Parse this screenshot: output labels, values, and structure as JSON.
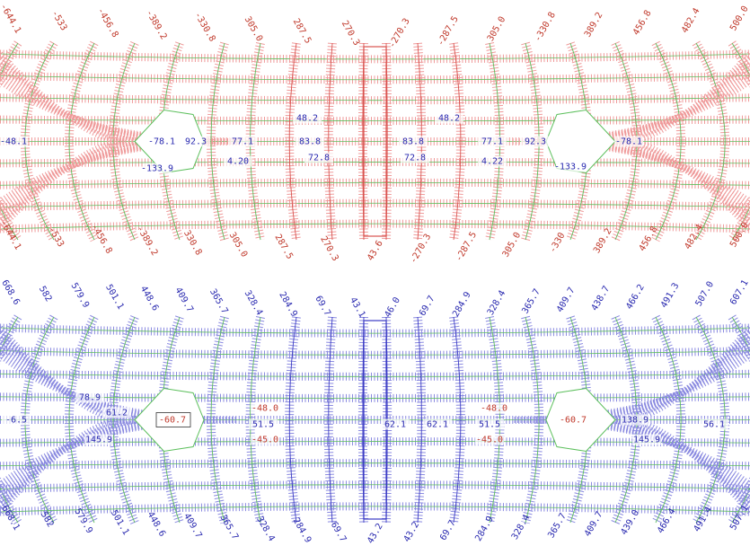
{
  "top_panel": {
    "edge_labels_top": [
      "-644.1",
      "-533",
      "-456.8",
      "-389.2",
      "-330.8",
      "305.0",
      "287.5",
      "270.3",
      "-270.3",
      "-287.5",
      "305.0",
      "-330.8",
      "389.2",
      "456.8",
      "482.4",
      "500.0"
    ],
    "edge_labels_bottom": [
      "-644.1",
      "-533",
      "-456.8",
      "-389.2",
      "330.8",
      "305.0",
      "287.5",
      "270.3",
      "43.6",
      "-270.3",
      "-287.5",
      "305.0",
      "-330",
      "389.2",
      "456.8",
      "482.4",
      "500.0"
    ],
    "inner_labels": [
      "-48.1",
      "-78.1",
      "92.3",
      "77.1",
      "83.8",
      "83.8",
      "77.1",
      "92.3",
      "-78.1",
      "48.2",
      "48.2",
      "4.20",
      "72.8",
      "72.8",
      "4.22",
      "-133.9",
      "-133.9"
    ]
  },
  "bottom_panel": {
    "edge_labels_top": [
      "668.6",
      "582",
      "579.9",
      "501.1",
      "448.6",
      "409.7",
      "365.7",
      "328.4",
      "284.9",
      "69.7",
      "43.1",
      "46.0",
      "69.7",
      "284.9",
      "328.4",
      "365.7",
      "409.7",
      "438.7",
      "466.2",
      "491.3",
      "507.0",
      "607.1"
    ],
    "edge_labels_bottom": [
      "668.1",
      "582",
      "579.9",
      "501.1",
      "448.6",
      "409.7",
      "365.7",
      "328.4",
      "284.9",
      "69.7",
      "43.2",
      "43.2",
      "69.7",
      "284.9",
      "328.4",
      "365.7",
      "409.7",
      "439.0",
      "466.4",
      "491.4",
      "507.1"
    ],
    "inner_labels": [
      "-6.5",
      "78.9",
      "61.2",
      "-60.7",
      "-48.0",
      "51.5",
      "62.1",
      "62.1",
      "51.5",
      "-48.0",
      "-60.7",
      "138.9",
      "-45.0",
      "-45.0",
      "145.9",
      "145.9",
      "56.1"
    ]
  }
}
